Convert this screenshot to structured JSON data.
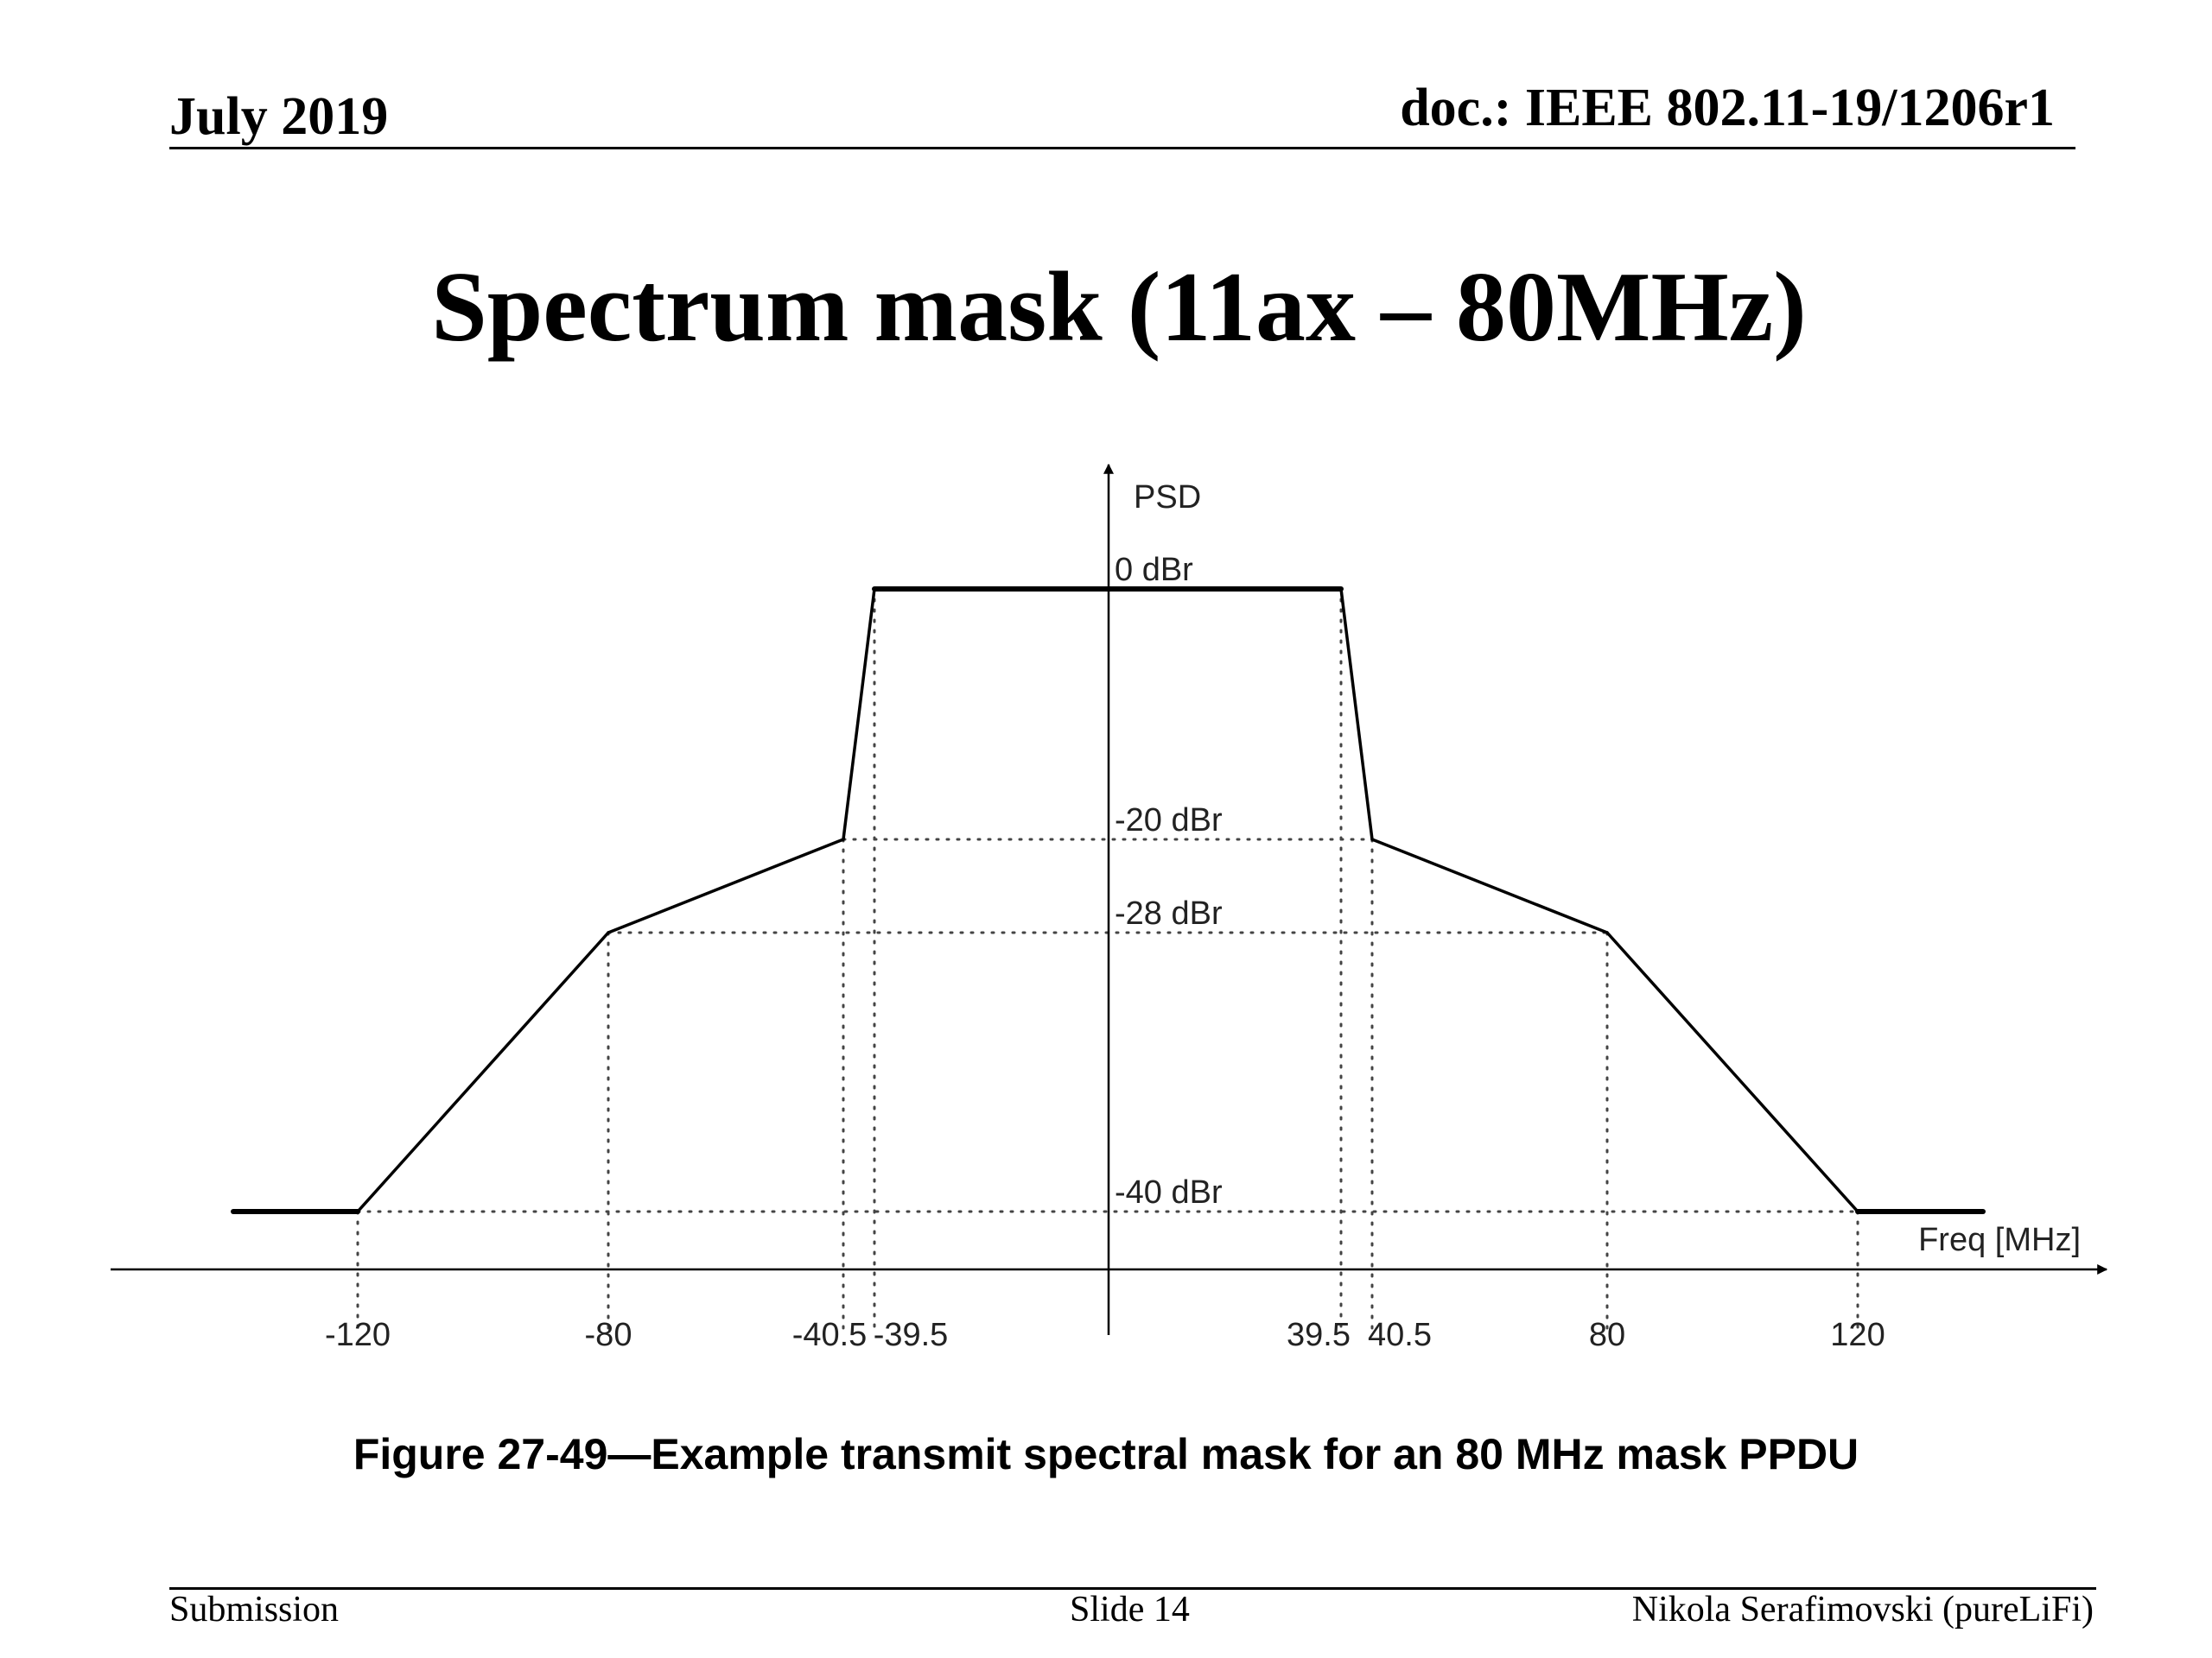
{
  "header": {
    "date": "July 2019",
    "doc": "doc.: IEEE 802.11-19/1206r1"
  },
  "slide": {
    "title": "Spectrum mask (11ax – 80MHz)"
  },
  "chart_data": {
    "type": "line",
    "title": "",
    "xlabel": "Freq [MHz]",
    "ylabel": "PSD",
    "caption": "Figure 27-49—Example transmit spectral mask for an 80 MHz mask PPDU",
    "x_ticks": [
      "-120",
      "-80",
      "-40.5",
      "-39.5",
      "39.5",
      "40.5",
      "80",
      "120"
    ],
    "y_ticks": [
      "0 dBr",
      "-20 dBr",
      "-28 dBr",
      "-40 dBr"
    ],
    "series": [
      {
        "x": [
          -140,
          -120,
          -80,
          -40.5,
          -39.5,
          39.5,
          40.5,
          80,
          120,
          140
        ],
        "y": [
          -40,
          -40,
          -28,
          -20,
          0,
          0,
          -20,
          -28,
          -40,
          -40
        ]
      }
    ],
    "reference_lines": {
      "vertical_x": [
        -120,
        -80,
        -40.5,
        -39.5,
        39.5,
        40.5,
        80,
        120
      ],
      "horizontal_y": [
        -20,
        -28,
        -40
      ]
    },
    "grid": false,
    "legend": "none"
  },
  "footer": {
    "left": "Submission",
    "center": "Slide 14",
    "right": "Nikola Serafimovski (pureLiFi)"
  }
}
